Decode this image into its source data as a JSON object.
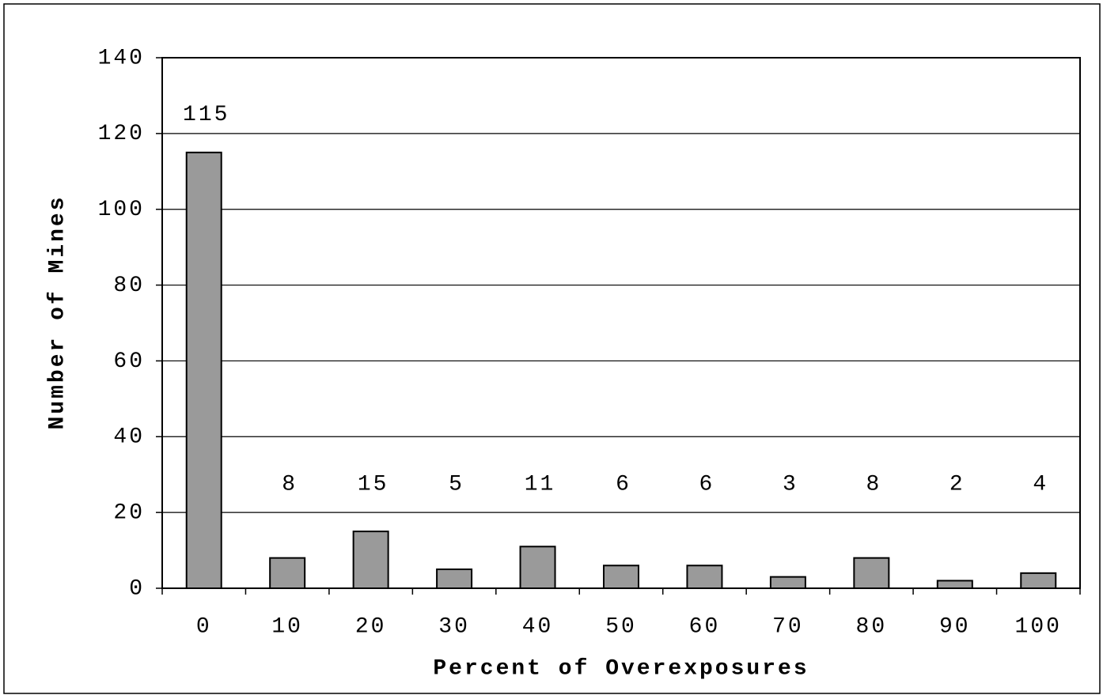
{
  "chart_data": {
    "type": "bar",
    "categories": [
      "0",
      "10",
      "20",
      "30",
      "40",
      "50",
      "60",
      "70",
      "80",
      "90",
      "100"
    ],
    "values": [
      115,
      8,
      15,
      5,
      11,
      6,
      6,
      3,
      8,
      2,
      4
    ],
    "color": "#9a9a9a",
    "x_label": "Percent of Overexposures",
    "y_label": "Number of Mines",
    "ylim": [
      0,
      140
    ],
    "yticks": [
      0,
      20,
      40,
      60,
      80,
      100,
      120,
      140
    ],
    "grid": true
  }
}
